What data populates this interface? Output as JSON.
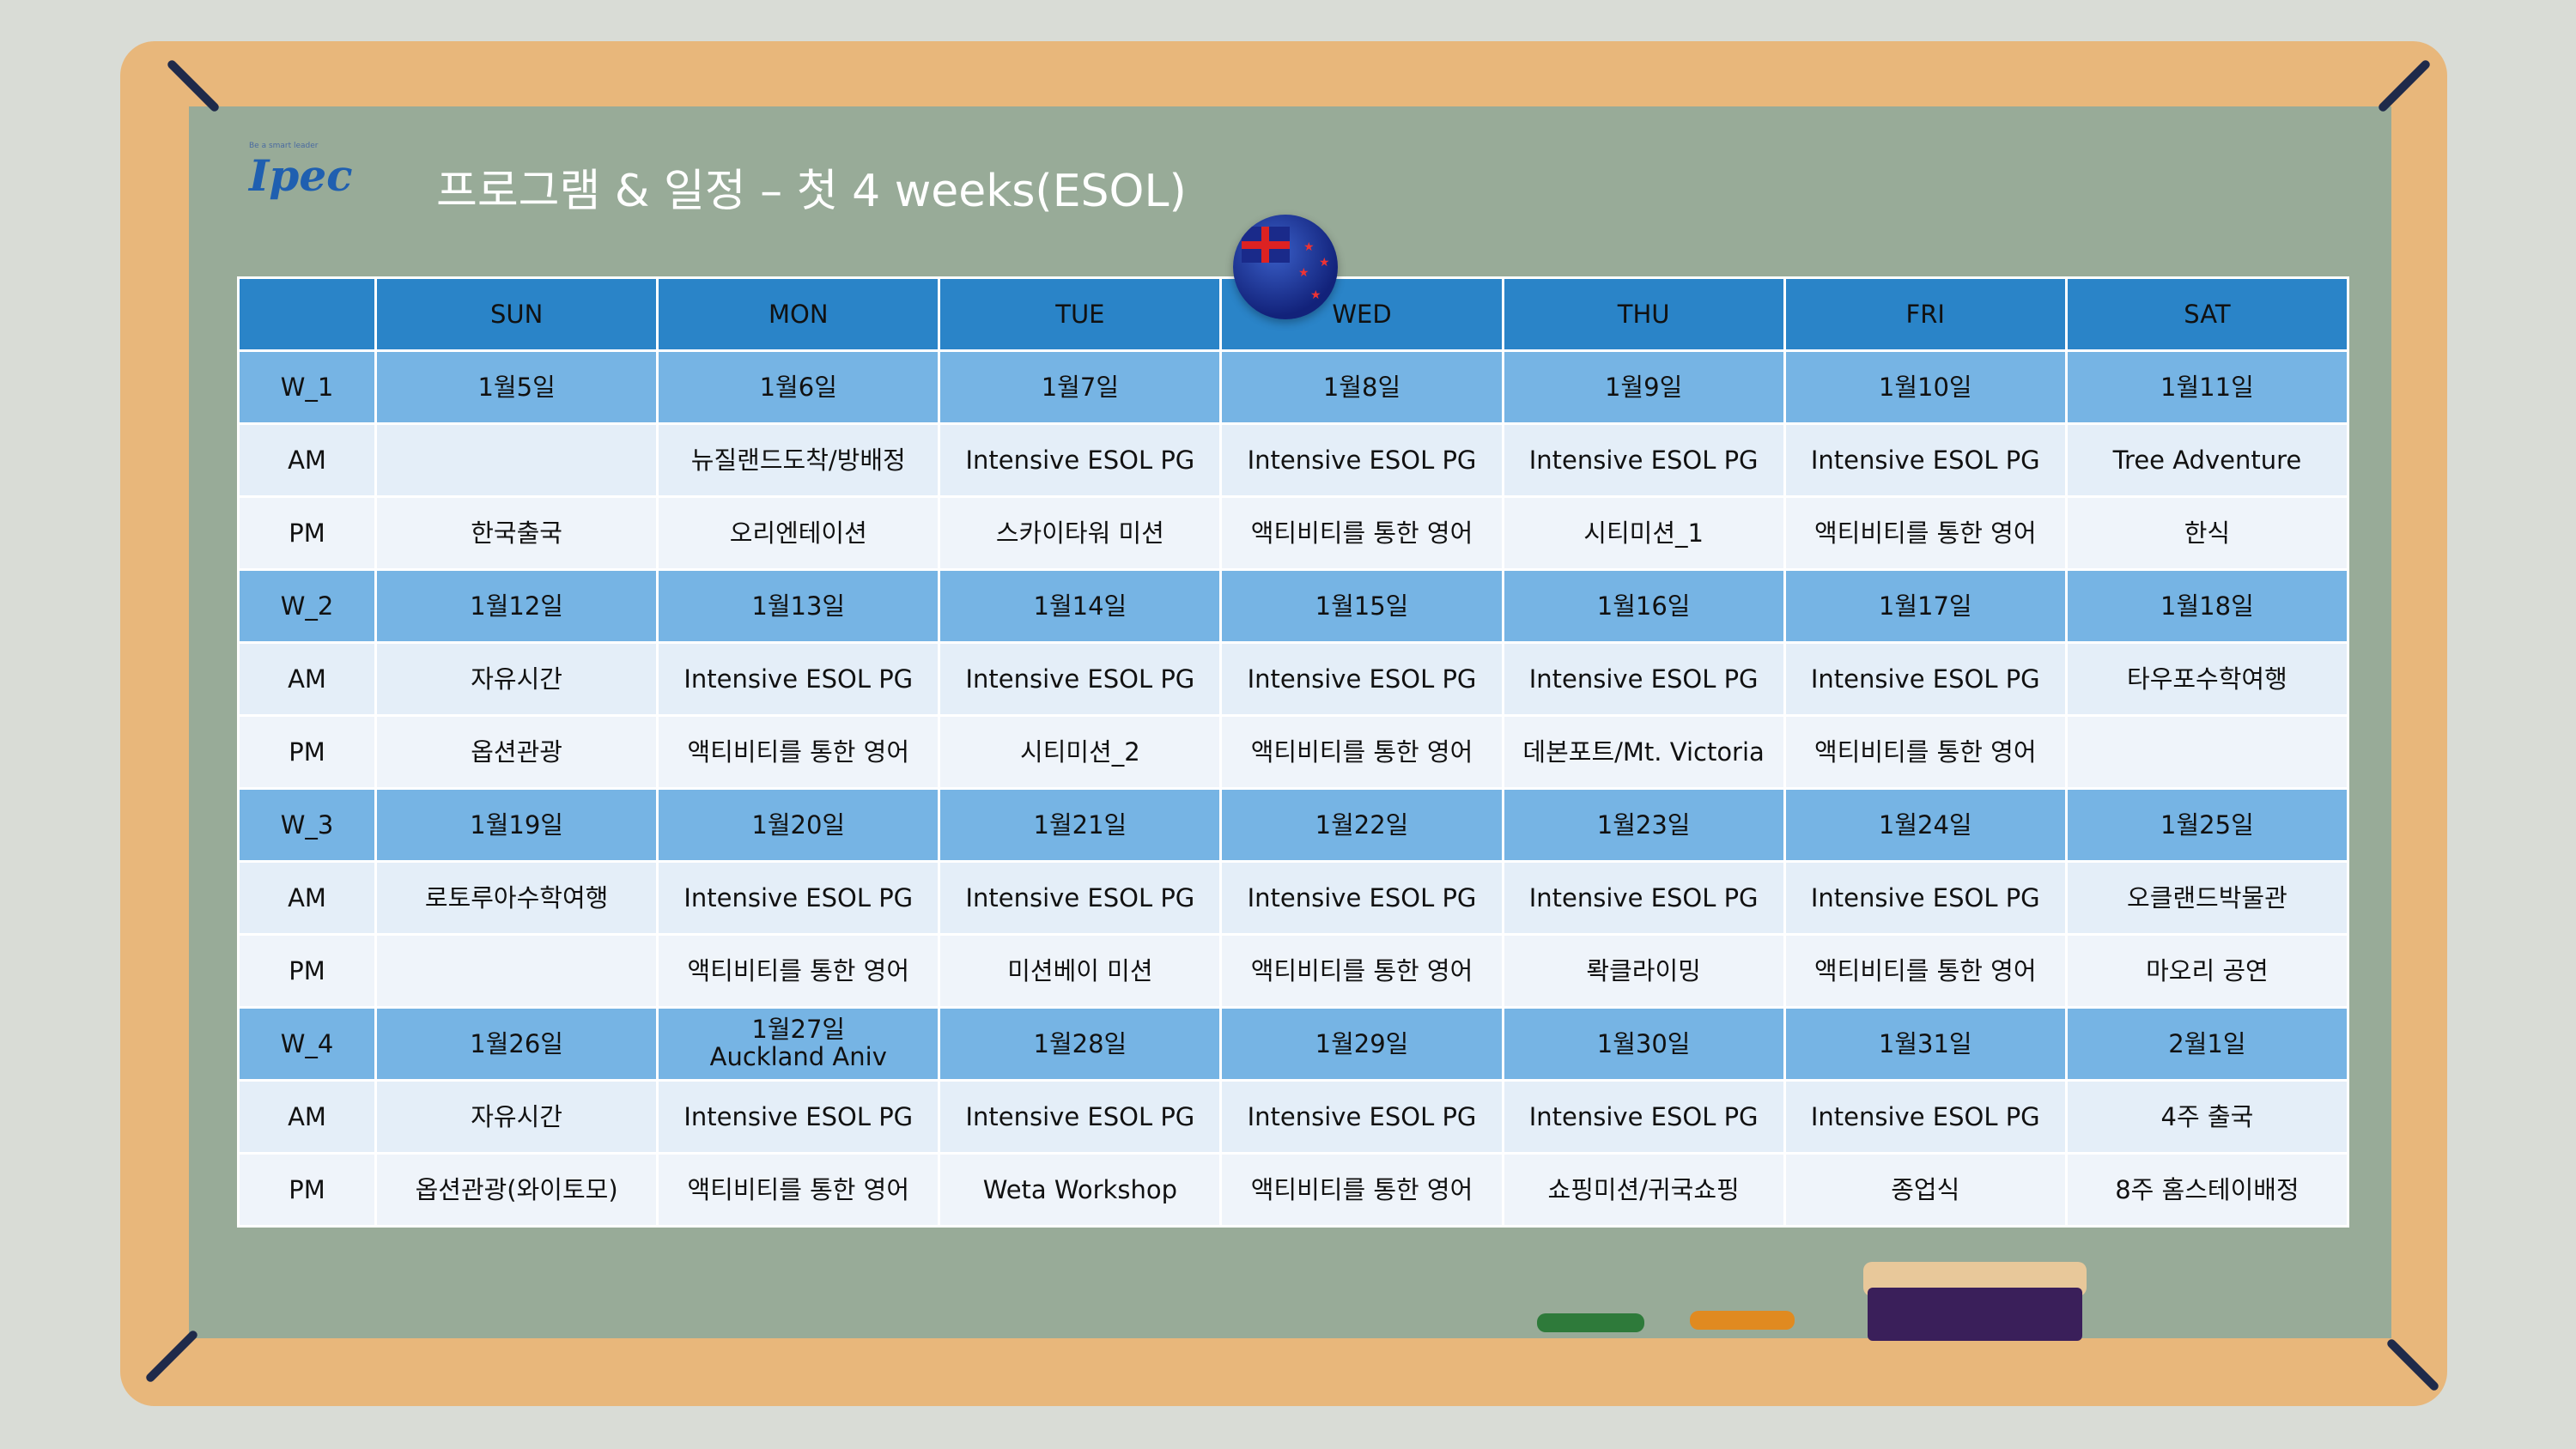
{
  "logo": {
    "tagline": "Be a smart leader",
    "name": "Ipec"
  },
  "title": "프로그램 & 일정 – 첫 4 weeks(ESOL)",
  "colors": {
    "header": "#2a84c8",
    "week_row": "#76b4e4",
    "board": "#98ab98",
    "frame": "#e8b77b"
  },
  "table": {
    "headers": [
      "",
      "SUN",
      "MON",
      "TUE",
      "WED",
      "THU",
      "FRI",
      "SAT"
    ],
    "weeks": [
      {
        "label": "W_1",
        "dates": [
          "1월5일",
          "1월6일",
          "1월7일",
          "1월8일",
          "1월9일",
          "1월10일",
          "1월11일"
        ],
        "am": [
          "",
          "뉴질랜드도착/방배정",
          "Intensive ESOL PG",
          "Intensive ESOL PG",
          "Intensive ESOL PG",
          "Intensive ESOL PG",
          "Tree Adventure"
        ],
        "pm": [
          "한국출국",
          "오리엔테이션",
          "스카이타워 미션",
          "액티비티를 통한 영어",
          "시티미션_1",
          "액티비티를 통한 영어",
          "한식"
        ]
      },
      {
        "label": "W_2",
        "dates": [
          "1월12일",
          "1월13일",
          "1월14일",
          "1월15일",
          "1월16일",
          "1월17일",
          "1월18일"
        ],
        "am": [
          "자유시간",
          "Intensive ESOL PG",
          "Intensive ESOL PG",
          "Intensive ESOL PG",
          "Intensive ESOL PG",
          "Intensive ESOL PG",
          "타우포수학여행"
        ],
        "pm": [
          "옵션관광",
          "액티비티를 통한 영어",
          "시티미션_2",
          "액티비티를 통한 영어",
          "데본포트/Mt. Victoria",
          "액티비티를 통한 영어",
          ""
        ]
      },
      {
        "label": "W_3",
        "dates": [
          "1월19일",
          "1월20일",
          "1월21일",
          "1월22일",
          "1월23일",
          "1월24일",
          "1월25일"
        ],
        "am": [
          "로토루아수학여행",
          "Intensive ESOL PG",
          "Intensive ESOL PG",
          "Intensive ESOL PG",
          "Intensive ESOL PG",
          "Intensive ESOL PG",
          "오클랜드박물관"
        ],
        "pm": [
          "",
          "액티비티를 통한 영어",
          "미션베이 미션",
          "액티비티를 통한 영어",
          "롹클라이밍",
          "액티비티를 통한 영어",
          "마오리 공연"
        ]
      },
      {
        "label": "W_4",
        "dates": [
          "1월26일",
          "1월27일\nAuckland Aniv",
          "1월28일",
          "1월29일",
          "1월30일",
          "1월31일",
          "2월1일"
        ],
        "am": [
          "자유시간",
          "Intensive ESOL PG",
          "Intensive ESOL PG",
          "Intensive ESOL PG",
          "Intensive ESOL PG",
          "Intensive ESOL PG",
          "4주 출국"
        ],
        "pm": [
          "옵션관광(와이토모)",
          "액티비티를 통한 영어",
          "Weta Workshop",
          "액티비티를 통한 영어",
          "쇼핑미션/귀국쇼핑",
          "종업식",
          "8주 홈스테이배정"
        ]
      }
    ],
    "am_label": "AM",
    "pm_label": "PM"
  }
}
